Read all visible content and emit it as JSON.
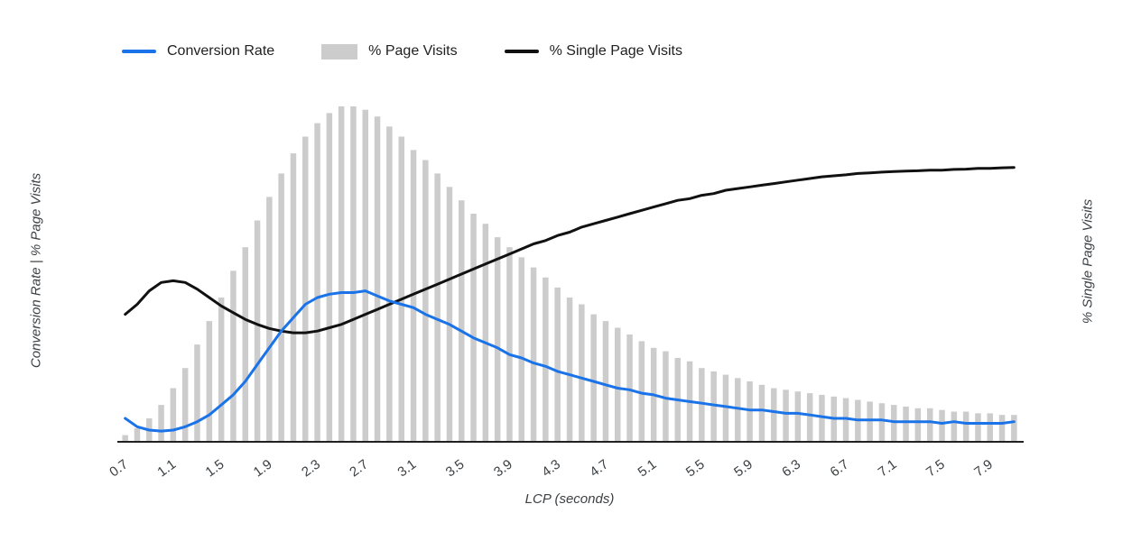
{
  "page": {
    "background": "#ffffff"
  },
  "legend": {
    "items": [
      {
        "label": "Conversion Rate",
        "type": "line",
        "color": "#1a73e8"
      },
      {
        "label": "% Page Visits",
        "type": "bar",
        "color": "#cccccc"
      },
      {
        "label": "% Single Page Visits",
        "type": "line",
        "color": "#111111"
      }
    ]
  },
  "chart_data": {
    "type": "combo",
    "title": "",
    "xlabel": "LCP (seconds)",
    "ylabel_left": "Conversion Rate | % Page Visits",
    "ylabel_right": "% Single Page Visits",
    "x_tick_labels": [
      "0.7",
      "1.1",
      "1.5",
      "1.9",
      "2.3",
      "2.7",
      "3.1",
      "3.5",
      "3.9",
      "4.3",
      "4.7",
      "5.1",
      "5.5",
      "5.9",
      "6.3",
      "6.7",
      "7.1",
      "7.5",
      "7.9"
    ],
    "xlim": [
      0.65,
      8.15
    ],
    "ylim_left": [
      0,
      100
    ],
    "ylim_right": [
      0,
      100
    ],
    "grid": false,
    "legend_position": "top",
    "x": [
      0.7,
      0.8,
      0.9,
      1.0,
      1.1,
      1.2,
      1.3,
      1.4,
      1.5,
      1.6,
      1.7,
      1.8,
      1.9,
      2.0,
      2.1,
      2.2,
      2.3,
      2.4,
      2.5,
      2.6,
      2.7,
      2.8,
      2.9,
      3.0,
      3.1,
      3.2,
      3.3,
      3.4,
      3.5,
      3.6,
      3.7,
      3.8,
      3.9,
      4.0,
      4.1,
      4.2,
      4.3,
      4.4,
      4.5,
      4.6,
      4.7,
      4.8,
      4.9,
      5.0,
      5.1,
      5.2,
      5.3,
      5.4,
      5.5,
      5.6,
      5.7,
      5.8,
      5.9,
      6.0,
      6.1,
      6.2,
      6.3,
      6.4,
      6.5,
      6.6,
      6.7,
      6.8,
      6.9,
      7.0,
      7.1,
      7.2,
      7.3,
      7.4,
      7.5,
      7.6,
      7.7,
      7.8,
      7.9,
      8.0,
      8.1
    ],
    "series": [
      {
        "name": "Conversion Rate",
        "type": "line",
        "axis": "left",
        "color": "#1a73e8",
        "values": [
          7,
          4.5,
          3.5,
          3.2,
          3.5,
          4.5,
          6,
          8,
          11,
          14,
          18,
          23,
          28,
          33,
          37,
          41,
          43,
          44,
          44.5,
          44.5,
          45,
          43.5,
          42,
          41,
          40,
          38,
          36.5,
          35,
          33,
          31,
          29.5,
          28,
          26,
          25,
          23.5,
          22.5,
          21,
          20,
          19,
          18,
          17,
          16,
          15.5,
          14.5,
          14,
          13,
          12.5,
          12,
          11.5,
          11,
          10.5,
          10,
          9.5,
          9.5,
          9,
          8.5,
          8.5,
          8,
          7.5,
          7,
          7,
          6.5,
          6.5,
          6.5,
          6,
          6,
          6,
          6,
          5.5,
          6,
          5.5,
          5.5,
          5.5,
          5.5,
          6
        ]
      },
      {
        "name": "% Page Visits",
        "type": "bar",
        "axis": "left",
        "color": "#cccccc",
        "values": [
          2,
          4,
          7,
          11,
          16,
          22,
          29,
          36,
          43,
          51,
          58,
          66,
          73,
          80,
          86,
          91,
          95,
          98,
          100,
          100,
          99,
          97,
          94,
          91,
          87,
          84,
          80,
          76,
          72,
          68,
          65,
          61,
          58,
          55,
          52,
          49,
          46,
          43,
          41,
          38,
          36,
          34,
          32,
          30,
          28,
          27,
          25,
          24,
          22,
          21,
          20,
          19,
          18,
          17,
          16,
          15.5,
          15,
          14.5,
          14,
          13.5,
          13,
          12.5,
          12,
          11.5,
          11,
          10.5,
          10,
          10,
          9.5,
          9,
          9,
          8.5,
          8.5,
          8,
          8
        ]
      },
      {
        "name": "% Single Page Visits",
        "type": "line",
        "axis": "right",
        "color": "#111111",
        "values": [
          38,
          41,
          45,
          47.5,
          48,
          47.5,
          45.5,
          43,
          40.5,
          38.5,
          36.5,
          35,
          33.8,
          33,
          32.5,
          32.5,
          33,
          34,
          35,
          36.5,
          38,
          39.5,
          41,
          42.5,
          44,
          45.5,
          47,
          48.5,
          50,
          51.5,
          53,
          54.5,
          56,
          57.5,
          59,
          60,
          61.5,
          62.5,
          64,
          65,
          66,
          67,
          68,
          69,
          70,
          71,
          72,
          72.5,
          73.5,
          74,
          75,
          75.5,
          76,
          76.5,
          77,
          77.5,
          78,
          78.5,
          79,
          79.3,
          79.6,
          80,
          80.2,
          80.4,
          80.6,
          80.7,
          80.8,
          81,
          81,
          81.2,
          81.3,
          81.5,
          81.5,
          81.7,
          81.8
        ]
      }
    ]
  }
}
